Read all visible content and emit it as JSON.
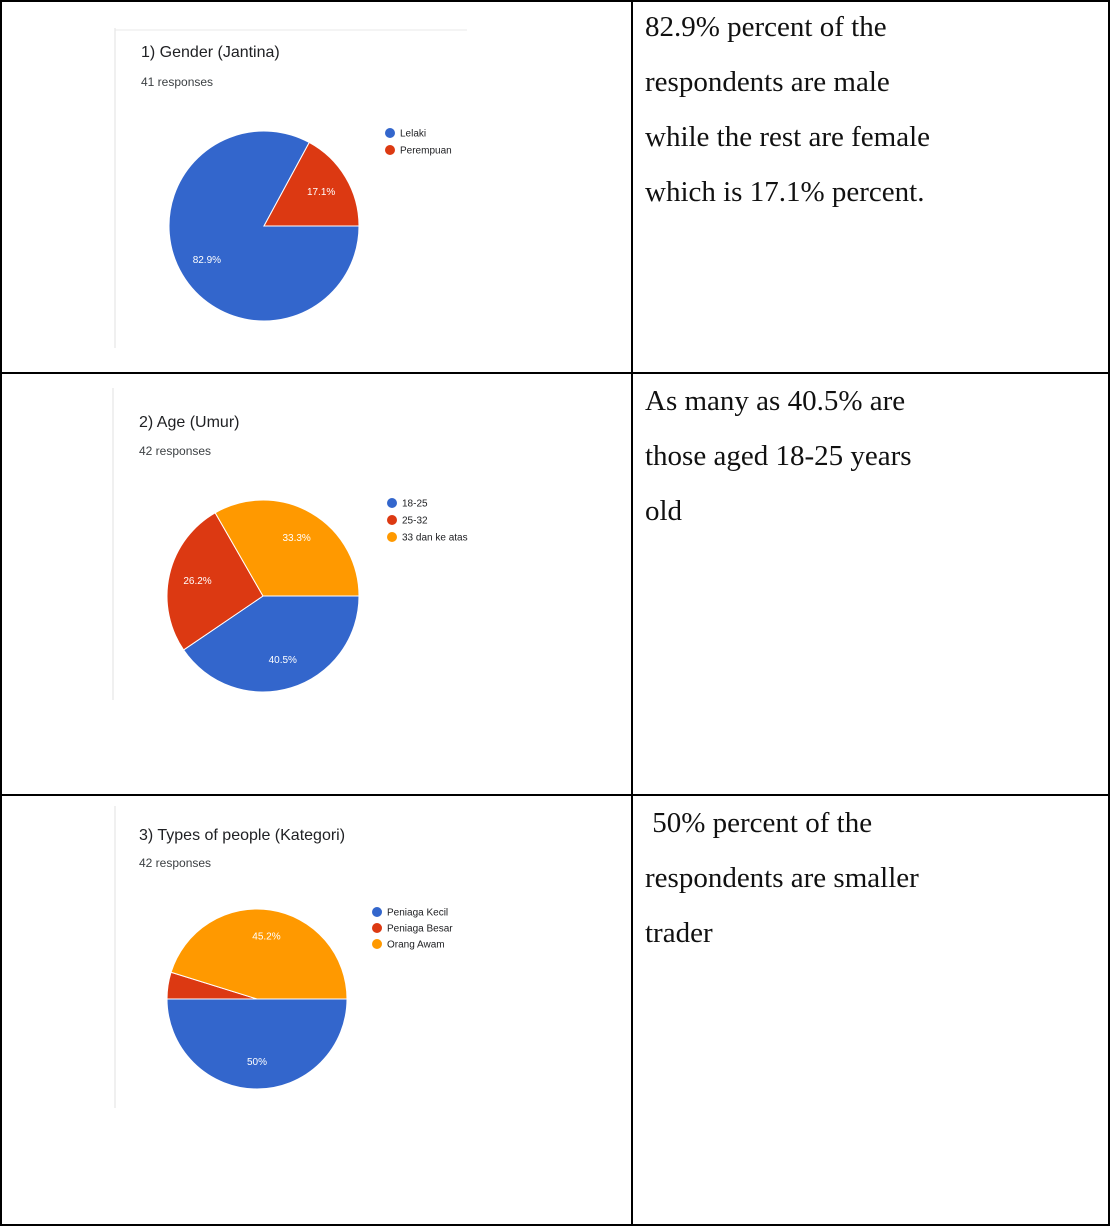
{
  "colors": {
    "blue": "#3366cc",
    "red": "#dc3912",
    "orange": "#ff9900"
  },
  "rows": [
    {
      "description": "82.9% percent of the\nrespondents are male\nwhile the rest are female\nwhich is 17.1% percent."
    },
    {
      "description": "As many as 40.5% are\nthose aged 18-25 years\nold"
    },
    {
      "description": " 50% percent of the\nrespondents are smaller\ntrader"
    }
  ],
  "chart_data": [
    {
      "type": "pie",
      "title": "1) Gender (Jantina)",
      "subtitle": "41 responses",
      "legend_placement": "right",
      "categories": [
        "Lelaki",
        "Perempuan"
      ],
      "values": [
        82.9,
        17.1
      ],
      "labels": [
        "82.9%",
        "17.1%"
      ],
      "colors": [
        "#3366cc",
        "#dc3912"
      ]
    },
    {
      "type": "pie",
      "title": "2) Age (Umur)",
      "subtitle": "42 responses",
      "legend_placement": "right",
      "categories": [
        "18-25",
        "25-32",
        "33 dan ke atas"
      ],
      "values": [
        40.5,
        26.2,
        33.3
      ],
      "labels": [
        "40.5%",
        "26.2%",
        "33.3%"
      ],
      "colors": [
        "#3366cc",
        "#dc3912",
        "#ff9900"
      ]
    },
    {
      "type": "pie",
      "title": "3) Types of people (Kategori)",
      "subtitle": "42 responses",
      "legend_placement": "right",
      "categories": [
        "Peniaga Kecil",
        "Peniaga Besar",
        "Orang Awam"
      ],
      "values": [
        50,
        4.8,
        45.2
      ],
      "labels": [
        "50%",
        "",
        "45.2%"
      ],
      "colors": [
        "#3366cc",
        "#dc3912",
        "#ff9900"
      ]
    }
  ]
}
